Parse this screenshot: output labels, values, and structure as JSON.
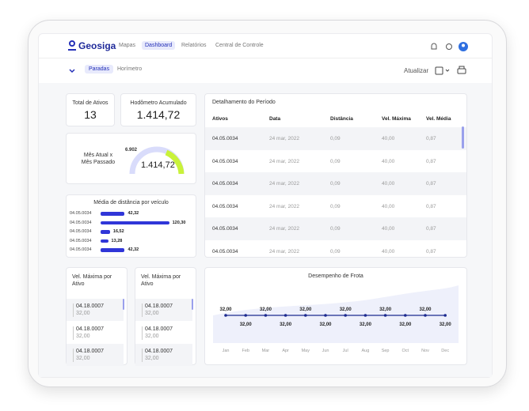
{
  "header": {
    "brand": "Geosiga",
    "nav": [
      "Mapas",
      "Dashboard",
      "Relatórios",
      "Central de Controle"
    ],
    "active_nav": 1
  },
  "subnav": {
    "tabs": [
      "Paradas",
      "Horímetro"
    ],
    "active_tab": 0,
    "refresh": "Atualizar"
  },
  "kpis": [
    {
      "label": "Total de Ativos",
      "value": "13"
    },
    {
      "label": "Hodômetro Acumulado",
      "value": "1.414,72"
    }
  ],
  "gauge": {
    "label": "Mês Atual x Mês Passado",
    "value": "1.414,72",
    "previous": "6.902"
  },
  "bar_chart": {
    "type": "bar",
    "title": "Média de distância por veículo",
    "categories": [
      "04.05.0034",
      "04.05.0034",
      "04.05.0034",
      "04.05.0034",
      "04.05.0034"
    ],
    "values": [
      42.32,
      120.3,
      16.52,
      13.28,
      42.32
    ],
    "value_labels": [
      "42,32",
      "120,30",
      "16,52",
      "13,28",
      "42,32"
    ],
    "color": "#3036d8",
    "xlim": [
      0,
      125
    ]
  },
  "speed_lists": [
    {
      "title": "Vel. Máxima por Ativo",
      "items": [
        {
          "asset": "04.18.0007",
          "value": "32,00"
        },
        {
          "asset": "04.18.0007",
          "value": "32,00"
        },
        {
          "asset": "04.18.0007",
          "value": "32,00"
        }
      ]
    },
    {
      "title": "Vel. Máxima por Ativo",
      "items": [
        {
          "asset": "04.18.0007",
          "value": "32,00"
        },
        {
          "asset": "04.18.0007",
          "value": "32,00"
        },
        {
          "asset": "04.18.0007",
          "value": "32,00"
        }
      ]
    }
  ],
  "table": {
    "title": "Detalhamento do Período",
    "columns": [
      "Ativos",
      "Data",
      "Distância",
      "Vel. Máxima",
      "Vel. Média"
    ],
    "rows": [
      [
        "04.05.0034",
        "24 mar, 2022",
        "0,09",
        "40,00",
        "0,87"
      ],
      [
        "04.05.0034",
        "24 mar, 2022",
        "0,09",
        "40,00",
        "0,87"
      ],
      [
        "04.05.0034",
        "24 mar, 2022",
        "0,09",
        "40,00",
        "0,87"
      ],
      [
        "04.05.0034",
        "24 mar, 2022",
        "0,09",
        "40,00",
        "0,87"
      ],
      [
        "04.05.0034",
        "24 mar, 2022",
        "0,09",
        "40,00",
        "0,87"
      ],
      [
        "04.05.0034",
        "24 mar, 2022",
        "0,09",
        "40,00",
        "0,87"
      ]
    ]
  },
  "line_chart": {
    "type": "line",
    "title": "Desempenho de Frota",
    "categories": [
      "Jan",
      "Feb",
      "Mar",
      "Apr",
      "May",
      "Jun",
      "Jul",
      "Aug",
      "Sep",
      "Oct",
      "Nov",
      "Dec"
    ],
    "values": [
      32,
      32,
      32,
      32,
      32,
      32,
      32,
      32,
      32,
      32,
      32,
      32
    ],
    "value_labels": [
      "32,00",
      "32,00",
      "32,00",
      "32,00",
      "32,00",
      "32,00",
      "32,00",
      "32,00",
      "32,00",
      "32,00",
      "32,00",
      "32,00"
    ],
    "color": "#1c2a8f",
    "ylim": [
      30,
      34
    ]
  }
}
